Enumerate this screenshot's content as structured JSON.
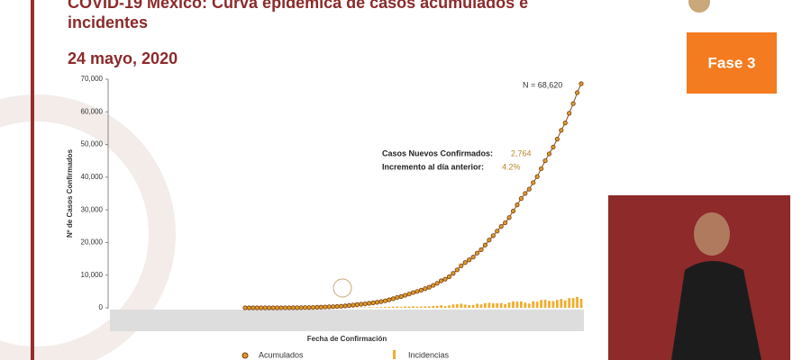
{
  "header": {
    "title": "COVID-19 México: Curva epidémica de casos acumulados e incidentes",
    "date": "24 mayo, 2020",
    "phase": "Fase 3"
  },
  "chart_data": {
    "type": "line",
    "categories": [
      null,
      null,
      null,
      null,
      null,
      null,
      null,
      null,
      null,
      null,
      null,
      null,
      null,
      null,
      null,
      null,
      null,
      null,
      null,
      null,
      null,
      null,
      null,
      null,
      null,
      null,
      null,
      null,
      null,
      null,
      null,
      null,
      null,
      null,
      null,
      null,
      null,
      null,
      null,
      null,
      null,
      null,
      null,
      null,
      null,
      null,
      null,
      null,
      null,
      null,
      null,
      null,
      null,
      null,
      null,
      null,
      null,
      null,
      null,
      null,
      null,
      null,
      null,
      null,
      null,
      null,
      null,
      null,
      null,
      null,
      null,
      null,
      null,
      null,
      null,
      null,
      null,
      null,
      null,
      null,
      null,
      null,
      null,
      null,
      null
    ],
    "x_label": "Fecha de Confirmación",
    "y_label": "Nº de Casos Confirmados",
    "series": [
      {
        "name": "Acumulados",
        "color": "#d99a2b",
        "values": [
          1,
          1,
          1,
          2,
          4,
          5,
          5,
          7,
          7,
          11,
          12,
          15,
          26,
          41,
          53,
          82,
          93,
          118,
          164,
          203,
          251,
          316,
          367,
          405,
          475,
          585,
          717,
          848,
          993,
          1094,
          1215,
          1378,
          1510,
          1688,
          1890,
          2143,
          2439,
          2785,
          3181,
          3441,
          3844,
          4219,
          4661,
          5014,
          5399,
          5847,
          6297,
          6875,
          7497,
          8261,
          8772,
          9501,
          10544,
          11633,
          12872,
          13842,
          14677,
          15529,
          16752,
          17799,
          19224,
          20739,
          22088,
          23471,
          24905,
          26025,
          27634,
          29616,
          31522,
          33460,
          35022,
          36327,
          38324,
          40186,
          42595,
          45032,
          47144,
          49219,
          51633,
          54346,
          56594,
          59567,
          62527,
          65856,
          68620
        ]
      },
      {
        "name": "Incidencias",
        "color": "#f0ad30",
        "values": [
          1,
          0,
          0,
          1,
          2,
          1,
          0,
          2,
          0,
          4,
          1,
          3,
          11,
          15,
          12,
          29,
          11,
          25,
          46,
          39,
          48,
          65,
          51,
          38,
          70,
          110,
          132,
          131,
          145,
          101,
          121,
          163,
          132,
          178,
          202,
          253,
          296,
          346,
          396,
          260,
          403,
          375,
          442,
          353,
          385,
          448,
          450,
          578,
          622,
          764,
          511,
          729,
          1043,
          1089,
          1239,
          970,
          835,
          852,
          1223,
          1047,
          1425,
          1515,
          1349,
          1383,
          1434,
          1120,
          1609,
          1982,
          1906,
          1938,
          1562,
          1305,
          1997,
          1862,
          2409,
          2437,
          2112,
          2075,
          2414,
          2713,
          2248,
          2973,
          2960,
          3329,
          2764
        ]
      }
    ],
    "ylim": [
      0,
      70000
    ],
    "yticks": [
      0,
      {
        "value": 10000,
        "label": "10,000"
      },
      {
        "value": 20000,
        "label": "20,000"
      },
      {
        "value": 30000,
        "label": "30,000"
      },
      {
        "value": 40000,
        "label": "40,000"
      },
      {
        "value": 50000,
        "label": "50,000"
      },
      {
        "value": 60000,
        "label": "60,000"
      },
      {
        "value": 70000,
        "label": "70,000"
      }
    ],
    "annotations": [
      "N = 68,620",
      "Casos Nuevos Confirmados:",
      "2,764",
      "Incremento al día anterior:",
      "4.2%"
    ]
  }
}
